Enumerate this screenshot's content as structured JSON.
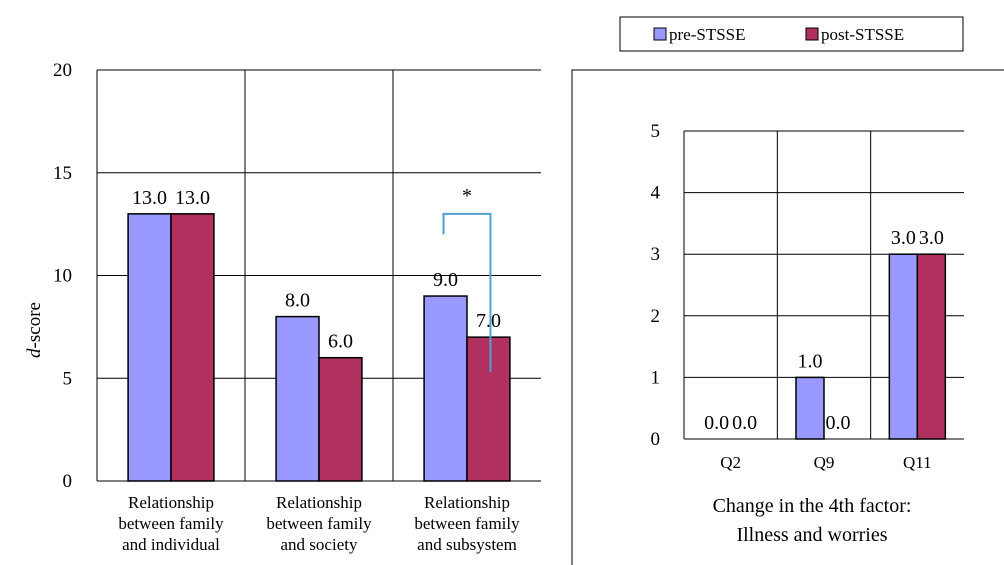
{
  "legend": {
    "items": [
      {
        "label": "pre-STSSE",
        "color": "#9999ff"
      },
      {
        "label": "post-STSSE",
        "color": "#b0305f"
      }
    ]
  },
  "chart_data": [
    {
      "type": "bar",
      "ylabel_italic": "d",
      "ylabel_rest": "-score",
      "ylim": [
        0,
        20
      ],
      "yticks": [
        "0",
        "5",
        "10",
        "15",
        "20"
      ],
      "grid": true,
      "category_lines": [
        [
          "Relationship",
          "between family",
          "and individual"
        ],
        [
          "Relationship",
          "between family",
          "and society"
        ],
        [
          "Relationship",
          "between family",
          "and subsystem"
        ]
      ],
      "series": [
        {
          "name": "pre-STSSE",
          "values": [
            13.0,
            8.0,
            9.0
          ],
          "labels": [
            "13.0",
            "8.0",
            "9.0"
          ]
        },
        {
          "name": "post-STSSE",
          "values": [
            13.0,
            6.0,
            7.0
          ],
          "labels": [
            "13.0",
            "6.0",
            "7.0"
          ]
        }
      ],
      "annotation": {
        "text": "*",
        "category_index": 2
      }
    },
    {
      "type": "bar",
      "ylim": [
        0,
        5
      ],
      "yticks": [
        "0",
        "1",
        "2",
        "3",
        "4",
        "5"
      ],
      "grid": true,
      "categories": [
        "Q2",
        "Q9",
        "Q11"
      ],
      "series": [
        {
          "name": "pre-STSSE",
          "values": [
            0.0,
            1.0,
            3.0
          ],
          "labels": [
            "0.0",
            "1.0",
            "3.0"
          ]
        },
        {
          "name": "post-STSSE",
          "values": [
            0.0,
            0.0,
            3.0
          ],
          "labels": [
            "0.0",
            "0.0",
            "3.0"
          ]
        }
      ],
      "caption_lines": [
        "Change in the 4th factor:",
        "Illness and worries"
      ]
    }
  ],
  "colors": {
    "pre": "#9999ff",
    "post": "#b0305f",
    "annotation": "#4f9fd6",
    "frame": "#000000"
  }
}
